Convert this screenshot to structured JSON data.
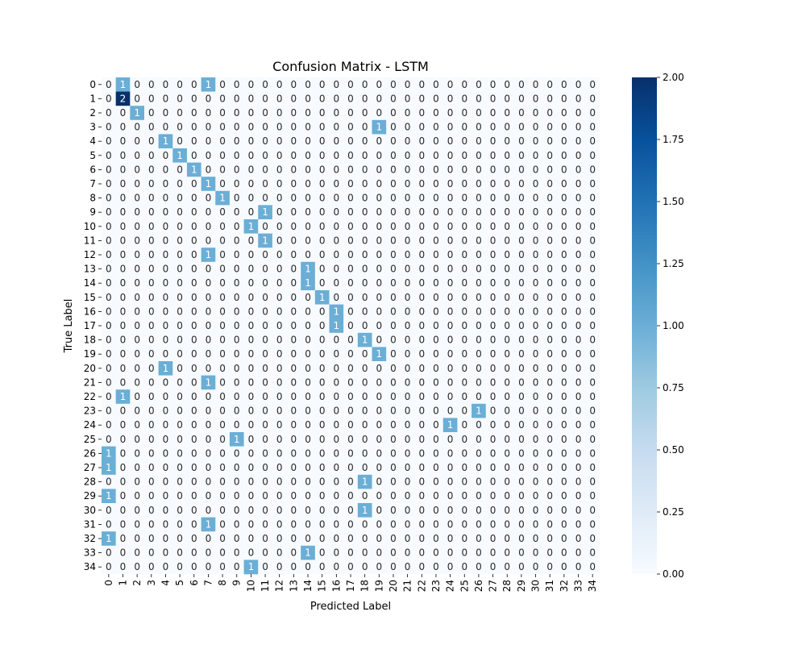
{
  "chart_data": {
    "type": "heatmap",
    "title": "Confusion Matrix - LSTM",
    "xlabel": "Predicted Label",
    "ylabel": "True Label",
    "x_categories": [
      "0",
      "1",
      "2",
      "3",
      "4",
      "5",
      "6",
      "7",
      "8",
      "9",
      "10",
      "11",
      "12",
      "13",
      "14",
      "15",
      "16",
      "17",
      "18",
      "19",
      "20",
      "21",
      "22",
      "23",
      "24",
      "25",
      "26",
      "27",
      "28",
      "29",
      "30",
      "31",
      "32",
      "33",
      "34"
    ],
    "y_categories": [
      "0",
      "1",
      "2",
      "3",
      "4",
      "5",
      "6",
      "7",
      "8",
      "9",
      "10",
      "11",
      "12",
      "13",
      "14",
      "15",
      "16",
      "17",
      "18",
      "19",
      "20",
      "21",
      "22",
      "23",
      "24",
      "25",
      "26",
      "27",
      "28",
      "29",
      "30",
      "31",
      "32",
      "33",
      "34"
    ],
    "nonzero_cells": [
      {
        "row": 0,
        "col": 1,
        "value": 1
      },
      {
        "row": 0,
        "col": 7,
        "value": 1
      },
      {
        "row": 1,
        "col": 1,
        "value": 2
      },
      {
        "row": 2,
        "col": 2,
        "value": 1
      },
      {
        "row": 3,
        "col": 19,
        "value": 1
      },
      {
        "row": 4,
        "col": 4,
        "value": 1
      },
      {
        "row": 5,
        "col": 5,
        "value": 1
      },
      {
        "row": 6,
        "col": 6,
        "value": 1
      },
      {
        "row": 7,
        "col": 7,
        "value": 1
      },
      {
        "row": 8,
        "col": 8,
        "value": 1
      },
      {
        "row": 9,
        "col": 11,
        "value": 1
      },
      {
        "row": 10,
        "col": 10,
        "value": 1
      },
      {
        "row": 11,
        "col": 11,
        "value": 1
      },
      {
        "row": 12,
        "col": 7,
        "value": 1
      },
      {
        "row": 13,
        "col": 14,
        "value": 1
      },
      {
        "row": 14,
        "col": 14,
        "value": 1
      },
      {
        "row": 15,
        "col": 15,
        "value": 1
      },
      {
        "row": 16,
        "col": 16,
        "value": 1
      },
      {
        "row": 17,
        "col": 16,
        "value": 1
      },
      {
        "row": 18,
        "col": 18,
        "value": 1
      },
      {
        "row": 19,
        "col": 19,
        "value": 1
      },
      {
        "row": 20,
        "col": 4,
        "value": 1
      },
      {
        "row": 21,
        "col": 7,
        "value": 1
      },
      {
        "row": 22,
        "col": 1,
        "value": 1
      },
      {
        "row": 23,
        "col": 26,
        "value": 1
      },
      {
        "row": 24,
        "col": 24,
        "value": 1
      },
      {
        "row": 25,
        "col": 9,
        "value": 1
      },
      {
        "row": 26,
        "col": 0,
        "value": 1
      },
      {
        "row": 27,
        "col": 0,
        "value": 1
      },
      {
        "row": 28,
        "col": 18,
        "value": 1
      },
      {
        "row": 29,
        "col": 0,
        "value": 1
      },
      {
        "row": 30,
        "col": 18,
        "value": 1
      },
      {
        "row": 31,
        "col": 7,
        "value": 1
      },
      {
        "row": 32,
        "col": 0,
        "value": 1
      },
      {
        "row": 33,
        "col": 14,
        "value": 1
      },
      {
        "row": 34,
        "col": 10,
        "value": 1
      }
    ],
    "default_value": 0,
    "colorbar": {
      "min": 0.0,
      "max": 2.0,
      "ticks": [
        "0.00",
        "0.25",
        "0.50",
        "0.75",
        "1.00",
        "1.25",
        "1.50",
        "1.75",
        "2.00"
      ]
    },
    "colormap": "Blues",
    "colors": {
      "low": "#f7fbff",
      "mid": "#6aaed6",
      "high": "#08306b"
    }
  }
}
